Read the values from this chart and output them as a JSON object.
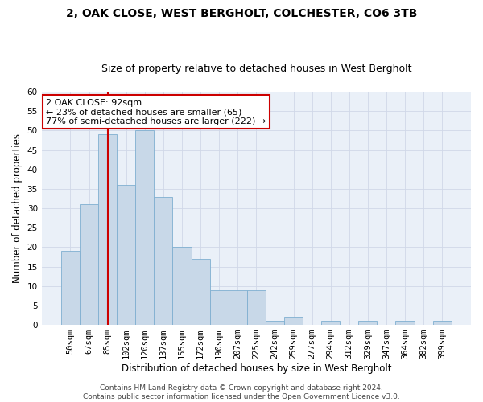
{
  "title": "2, OAK CLOSE, WEST BERGHOLT, COLCHESTER, CO6 3TB",
  "subtitle": "Size of property relative to detached houses in West Bergholt",
  "xlabel": "Distribution of detached houses by size in West Bergholt",
  "ylabel": "Number of detached properties",
  "categories": [
    "50sqm",
    "67sqm",
    "85sqm",
    "102sqm",
    "120sqm",
    "137sqm",
    "155sqm",
    "172sqm",
    "190sqm",
    "207sqm",
    "225sqm",
    "242sqm",
    "259sqm",
    "277sqm",
    "294sqm",
    "312sqm",
    "329sqm",
    "347sqm",
    "364sqm",
    "382sqm",
    "399sqm"
  ],
  "values": [
    19,
    31,
    49,
    36,
    50,
    33,
    20,
    17,
    9,
    9,
    9,
    1,
    2,
    0,
    1,
    0,
    1,
    0,
    1,
    0,
    1
  ],
  "bar_color": "#c8d8e8",
  "bar_edge_color": "#7fafd0",
  "vline_x": 2.0,
  "vline_color": "#cc0000",
  "annotation_text": "2 OAK CLOSE: 92sqm\n← 23% of detached houses are smaller (65)\n77% of semi-detached houses are larger (222) →",
  "annotation_box_color": "#ffffff",
  "annotation_box_edge_color": "#cc0000",
  "ylim": [
    0,
    60
  ],
  "yticks": [
    0,
    5,
    10,
    15,
    20,
    25,
    30,
    35,
    40,
    45,
    50,
    55,
    60
  ],
  "grid_color": "#d0d8e8",
  "background_color": "#eaf0f8",
  "footer": "Contains HM Land Registry data © Crown copyright and database right 2024.\nContains public sector information licensed under the Open Government Licence v3.0.",
  "title_fontsize": 10,
  "subtitle_fontsize": 9,
  "xlabel_fontsize": 8.5,
  "ylabel_fontsize": 8.5,
  "tick_fontsize": 7.5,
  "annotation_fontsize": 8,
  "footer_fontsize": 6.5
}
